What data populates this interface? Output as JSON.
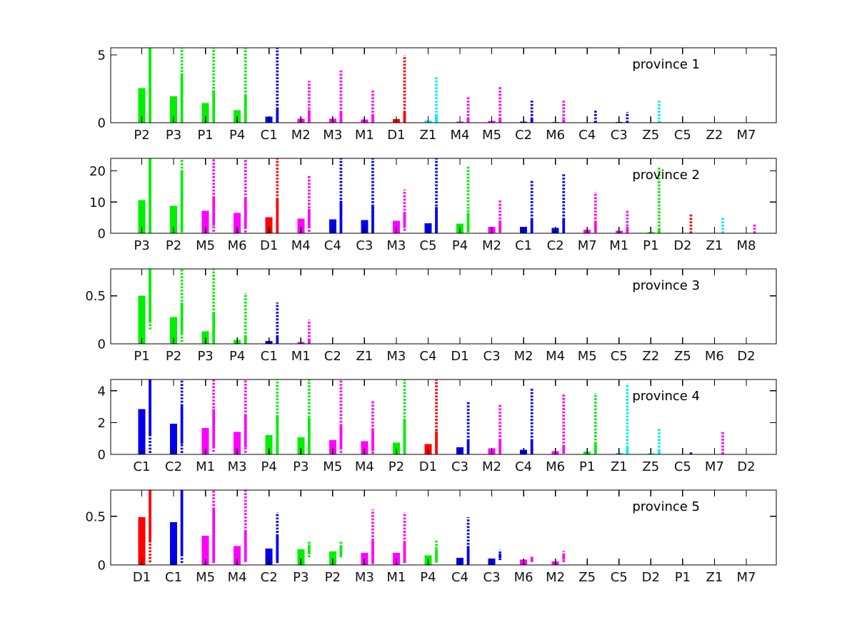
{
  "figure": {
    "background": "#ffffff"
  },
  "colors": {
    "P": "#00ee00",
    "C": "#0000ee",
    "M": "#ff00ff",
    "D": "#ff0000",
    "Z": "#00eeee"
  },
  "chart_data": [
    {
      "type": "bar",
      "title": "province 1",
      "ylim": [
        0,
        5.53
      ],
      "yticks": [
        [
          0,
          "0"
        ],
        [
          5,
          "5"
        ]
      ],
      "items": [
        {
          "label": "P2",
          "bar": 2.55,
          "solid": [
            0,
            6
          ],
          "dotted": [
            0,
            6
          ]
        },
        {
          "label": "P3",
          "bar": 1.94,
          "solid": [
            0.03,
            3.65
          ],
          "dotted": [
            0.02,
            6
          ]
        },
        {
          "label": "P1",
          "bar": 1.44,
          "solid": [
            0.05,
            2.4
          ],
          "dotted": [
            0.02,
            6
          ]
        },
        {
          "label": "P4",
          "bar": 0.93,
          "solid": [
            0,
            2.0
          ],
          "dotted": [
            0,
            6
          ]
        },
        {
          "label": "C1",
          "bar": 0.44,
          "solid": [
            0,
            1.1
          ],
          "dotted": [
            0,
            6
          ]
        },
        {
          "label": "M2",
          "bar": 0.3,
          "solid": [
            0,
            0.93
          ],
          "dotted": [
            0,
            3.08
          ]
        },
        {
          "label": "M3",
          "bar": 0.3,
          "solid": [
            0,
            0.76
          ],
          "dotted": [
            0,
            3.9
          ]
        },
        {
          "label": "M1",
          "bar": 0.23,
          "solid": [
            0,
            0.58
          ],
          "dotted": [
            0,
            2.43
          ]
        },
        {
          "label": "D1",
          "bar": 0.26,
          "solid": [
            0,
            0.78
          ],
          "dotted": [
            0,
            4.97
          ]
        },
        {
          "label": "Z1",
          "bar": 0.16,
          "solid": [
            0,
            0.57
          ],
          "dotted": [
            0,
            3.35
          ]
        },
        {
          "label": "M4",
          "bar": 0.09,
          "solid": [
            0,
            0.4
          ],
          "dotted": [
            0,
            1.94
          ]
        },
        {
          "label": "M5",
          "bar": 0.12,
          "solid": [
            0,
            0.3
          ],
          "dotted": [
            0,
            2.64
          ]
        },
        {
          "label": "C2",
          "bar": 0.09,
          "solid": [
            0,
            0.35
          ],
          "dotted": [
            0,
            1.64
          ]
        },
        {
          "label": "M6",
          "bar": 0.05,
          "solid": [
            0,
            0.23
          ],
          "dotted": [
            0,
            1.62
          ]
        },
        {
          "label": "C4",
          "bar": 0.02,
          "solid": [
            0,
            0.11
          ],
          "dotted": [
            0,
            0.95
          ]
        },
        {
          "label": "C3",
          "bar": 0.04,
          "solid": [
            0,
            0.11
          ],
          "dotted": [
            0,
            0.79
          ]
        },
        {
          "label": "Z5",
          "bar": 0,
          "solid": [
            0,
            0.05
          ],
          "dotted": [
            0,
            1.65
          ]
        },
        {
          "label": "C5",
          "bar": 0
        },
        {
          "label": "Z2",
          "bar": 0
        },
        {
          "label": "M7",
          "bar": 0
        }
      ]
    },
    {
      "type": "bar",
      "title": "province 2",
      "ylim": [
        0,
        24
      ],
      "yticks": [
        [
          0,
          "0"
        ],
        [
          10,
          "10"
        ],
        [
          20,
          "20"
        ]
      ],
      "items": [
        {
          "label": "P3",
          "bar": 10.6,
          "solid": [
            0,
            26
          ],
          "dotted": [
            0,
            26
          ]
        },
        {
          "label": "P2",
          "bar": 8.8,
          "solid": [
            0.5,
            20.0
          ],
          "dotted": [
            0.3,
            26
          ]
        },
        {
          "label": "M5",
          "bar": 7.25,
          "solid": [
            2.4,
            11.8
          ],
          "dotted": [
            0.5,
            26
          ]
        },
        {
          "label": "M6",
          "bar": 6.5,
          "solid": [
            2.05,
            11.4
          ],
          "dotted": [
            0.3,
            26
          ]
        },
        {
          "label": "D1",
          "bar": 5.1,
          "solid": [
            0,
            11.0
          ],
          "dotted": [
            0,
            26
          ]
        },
        {
          "label": "M4",
          "bar": 4.7,
          "solid": [
            2.0,
            7.8
          ],
          "dotted": [
            0.5,
            18.7
          ]
        },
        {
          "label": "C4",
          "bar": 4.5,
          "solid": [
            0,
            10.4
          ],
          "dotted": [
            0,
            26
          ]
        },
        {
          "label": "C3",
          "bar": 4.2,
          "solid": [
            0,
            8.7
          ],
          "dotted": [
            0,
            26
          ]
        },
        {
          "label": "M3",
          "bar": 3.95,
          "solid": [
            1.7,
            6.8
          ],
          "dotted": [
            0.8,
            14.0
          ]
        },
        {
          "label": "C5",
          "bar": 3.2,
          "solid": [
            0,
            8.4
          ],
          "dotted": [
            0,
            26
          ]
        },
        {
          "label": "P4",
          "bar": 3.1,
          "solid": [
            0.5,
            6.5
          ],
          "dotted": [
            0.3,
            21.3
          ]
        },
        {
          "label": "M2",
          "bar": 2.05,
          "solid": [
            0.3,
            4.1
          ],
          "dotted": [
            0.2,
            10.6
          ]
        },
        {
          "label": "C1",
          "bar": 2.05,
          "solid": [
            0,
            4.3
          ],
          "dotted": [
            0,
            16.9
          ]
        },
        {
          "label": "C2",
          "bar": 1.7,
          "solid": [
            0,
            4.9
          ],
          "dotted": [
            0,
            19.2
          ]
        },
        {
          "label": "M7",
          "bar": 1.1,
          "solid": [
            0.3,
            4.0
          ],
          "dotted": [
            0.2,
            13.2
          ]
        },
        {
          "label": "M1",
          "bar": 0.8,
          "solid": [
            0.15,
            2.05
          ],
          "dotted": [
            0.1,
            7.4
          ]
        },
        {
          "label": "P1",
          "bar": 0.4,
          "solid": [
            0,
            1.45
          ],
          "dotted": [
            0,
            21.3
          ]
        },
        {
          "label": "D2",
          "bar": 0.08,
          "solid": [
            0,
            0.3
          ],
          "dotted": [
            0,
            6.1
          ]
        },
        {
          "label": "Z1",
          "bar": 0.08,
          "solid": [
            0,
            0.3
          ],
          "dotted": [
            0,
            5.1
          ]
        },
        {
          "label": "M8",
          "bar": 0.02,
          "solid": [
            0,
            0.15
          ],
          "dotted": [
            0,
            2.8
          ]
        }
      ]
    },
    {
      "type": "bar",
      "title": "province 3",
      "ylim": [
        0,
        0.78
      ],
      "yticks": [
        [
          0,
          "0"
        ],
        [
          0.5,
          "0.5"
        ]
      ],
      "items": [
        {
          "label": "P1",
          "bar": 0.5,
          "solid": [
            0.22,
            0.9
          ],
          "dotted": [
            0.15,
            0.9
          ]
        },
        {
          "label": "P2",
          "bar": 0.28,
          "solid": [
            0.1,
            0.43
          ],
          "dotted": [
            0.02,
            0.9
          ]
        },
        {
          "label": "P3",
          "bar": 0.13,
          "solid": [
            0,
            0.33
          ],
          "dotted": [
            0,
            0.9
          ]
        },
        {
          "label": "P4",
          "bar": 0.04,
          "solid": [
            0,
            0.09
          ],
          "dotted": [
            0,
            0.53
          ]
        },
        {
          "label": "C1",
          "bar": 0.03,
          "solid": [
            0,
            0.07
          ],
          "dotted": [
            0,
            0.43
          ]
        },
        {
          "label": "M1",
          "bar": 0.017,
          "solid": [
            0,
            0.04
          ],
          "dotted": [
            0,
            0.25
          ]
        },
        {
          "label": "C2",
          "bar": 0
        },
        {
          "label": "Z1",
          "bar": 0
        },
        {
          "label": "M3",
          "bar": 0
        },
        {
          "label": "C4",
          "bar": 0
        },
        {
          "label": "D1",
          "bar": 0
        },
        {
          "label": "C3",
          "bar": 0
        },
        {
          "label": "M2",
          "bar": 0
        },
        {
          "label": "M4",
          "bar": 0
        },
        {
          "label": "M5",
          "bar": 0
        },
        {
          "label": "C5",
          "bar": 0
        },
        {
          "label": "Z2",
          "bar": 0
        },
        {
          "label": "Z5",
          "bar": 0
        },
        {
          "label": "M6",
          "bar": 0
        },
        {
          "label": "D2",
          "bar": 0
        }
      ]
    },
    {
      "type": "bar",
      "title": "province 4",
      "ylim": [
        0,
        4.71
      ],
      "yticks": [
        [
          0,
          "0"
        ],
        [
          2,
          "2"
        ],
        [
          4,
          "4"
        ]
      ],
      "items": [
        {
          "label": "C1",
          "bar": 2.85,
          "solid": [
            1.17,
            5.5
          ],
          "dotted": [
            0.09,
            5.5
          ]
        },
        {
          "label": "C2",
          "bar": 1.92,
          "solid": [
            0.66,
            3.15
          ],
          "dotted": [
            0.09,
            5.5
          ]
        },
        {
          "label": "M1",
          "bar": 1.65,
          "solid": [
            0.5,
            2.85
          ],
          "dotted": [
            0.16,
            5.5
          ]
        },
        {
          "label": "M3",
          "bar": 1.42,
          "solid": [
            0.45,
            2.5
          ],
          "dotted": [
            0.1,
            5.5
          ]
        },
        {
          "label": "P4",
          "bar": 1.2,
          "solid": [
            0.03,
            2.45
          ],
          "dotted": [
            0.03,
            5.5
          ]
        },
        {
          "label": "P3",
          "bar": 1.08,
          "solid": [
            0,
            2.3
          ],
          "dotted": [
            0,
            5.5
          ]
        },
        {
          "label": "M5",
          "bar": 0.9,
          "solid": [
            0.33,
            1.9
          ],
          "dotted": [
            0.1,
            5.5
          ]
        },
        {
          "label": "M4",
          "bar": 0.82,
          "solid": [
            0.21,
            1.52
          ],
          "dotted": [
            0.05,
            3.35
          ]
        },
        {
          "label": "P2",
          "bar": 0.75,
          "solid": [
            0,
            2.2
          ],
          "dotted": [
            0,
            5.5
          ]
        },
        {
          "label": "D1",
          "bar": 0.66,
          "solid": [
            0,
            1.45
          ],
          "dotted": [
            0,
            5.5
          ]
        },
        {
          "label": "C3",
          "bar": 0.45,
          "solid": [
            0,
            0.96
          ],
          "dotted": [
            0,
            3.32
          ]
        },
        {
          "label": "M2",
          "bar": 0.39,
          "solid": [
            0.03,
            0.96
          ],
          "dotted": [
            0.03,
            3.12
          ]
        },
        {
          "label": "C4",
          "bar": 0.3,
          "solid": [
            0,
            0.96
          ],
          "dotted": [
            0,
            4.2
          ]
        },
        {
          "label": "M6",
          "bar": 0.21,
          "solid": [
            0.1,
            0.58
          ],
          "dotted": [
            0.05,
            3.8
          ]
        },
        {
          "label": "P1",
          "bar": 0.18,
          "solid": [
            0.06,
            0.66
          ],
          "dotted": [
            0.03,
            3.85
          ]
        },
        {
          "label": "Z1",
          "bar": 0.1,
          "solid": [
            0,
            0.55
          ],
          "dotted": [
            0,
            4.45
          ]
        },
        {
          "label": "Z5",
          "bar": 0.06,
          "solid": [
            0,
            0.21
          ],
          "dotted": [
            0,
            1.67
          ]
        },
        {
          "label": "C5",
          "bar": 0.02,
          "solid": [
            0,
            0.06
          ],
          "dotted": [
            0,
            0.15
          ]
        },
        {
          "label": "M7",
          "bar": 0,
          "solid": [
            0,
            0.03
          ],
          "dotted": [
            0.02,
            1.45
          ]
        },
        {
          "label": "D2",
          "bar": 0
        }
      ]
    },
    {
      "type": "bar",
      "title": "province 5",
      "ylim": [
        0,
        0.77
      ],
      "yticks": [
        [
          0,
          "0"
        ],
        [
          0.5,
          "0.5"
        ]
      ],
      "items": [
        {
          "label": "D1",
          "bar": 0.49,
          "solid": [
            0.23,
            0.9
          ],
          "dotted": [
            0.027,
            0.9
          ]
        },
        {
          "label": "C1",
          "bar": 0.44,
          "solid": [
            0.093,
            0.9
          ],
          "dotted": [
            0.02,
            0.9
          ]
        },
        {
          "label": "M5",
          "bar": 0.3,
          "solid": [
            0.025,
            0.58
          ],
          "dotted": [
            0.02,
            0.9
          ]
        },
        {
          "label": "M4",
          "bar": 0.194,
          "solid": [
            0.039,
            0.35
          ],
          "dotted": [
            0.03,
            0.9
          ]
        },
        {
          "label": "C2",
          "bar": 0.17,
          "solid": [
            0.04,
            0.31
          ],
          "dotted": [
            0.02,
            0.54
          ]
        },
        {
          "label": "P3",
          "bar": 0.16,
          "solid": [
            0.11,
            0.21
          ],
          "dotted": [
            0.08,
            0.25
          ]
        },
        {
          "label": "P2",
          "bar": 0.14,
          "solid": [
            0.1,
            0.2
          ],
          "dotted": [
            0.08,
            0.245
          ]
        },
        {
          "label": "M3",
          "bar": 0.125,
          "solid": [
            0.02,
            0.25
          ],
          "dotted": [
            0.01,
            0.57
          ]
        },
        {
          "label": "M1",
          "bar": 0.125,
          "solid": [
            0.03,
            0.24
          ],
          "dotted": [
            0.02,
            0.54
          ]
        },
        {
          "label": "P4",
          "bar": 0.1,
          "solid": [
            0.04,
            0.16
          ],
          "dotted": [
            0.025,
            0.25
          ]
        },
        {
          "label": "C4",
          "bar": 0.075,
          "solid": [
            0,
            0.195
          ],
          "dotted": [
            0,
            0.49
          ]
        },
        {
          "label": "C3",
          "bar": 0.066,
          "solid": [
            0.073,
            0.115
          ],
          "dotted": [
            0.05,
            0.156
          ]
        },
        {
          "label": "M6",
          "bar": 0.054,
          "solid": [
            0.04,
            0.073
          ],
          "dotted": [
            0.03,
            0.09
          ]
        },
        {
          "label": "M2",
          "bar": 0.037,
          "solid": [
            0.054,
            0.1
          ],
          "dotted": [
            0.03,
            0.144
          ]
        },
        {
          "label": "Z5",
          "bar": 0
        },
        {
          "label": "C5",
          "bar": 0
        },
        {
          "label": "D2",
          "bar": 0
        },
        {
          "label": "P1",
          "bar": 0
        },
        {
          "label": "Z1",
          "bar": 0
        },
        {
          "label": "M7",
          "bar": 0
        }
      ]
    }
  ]
}
